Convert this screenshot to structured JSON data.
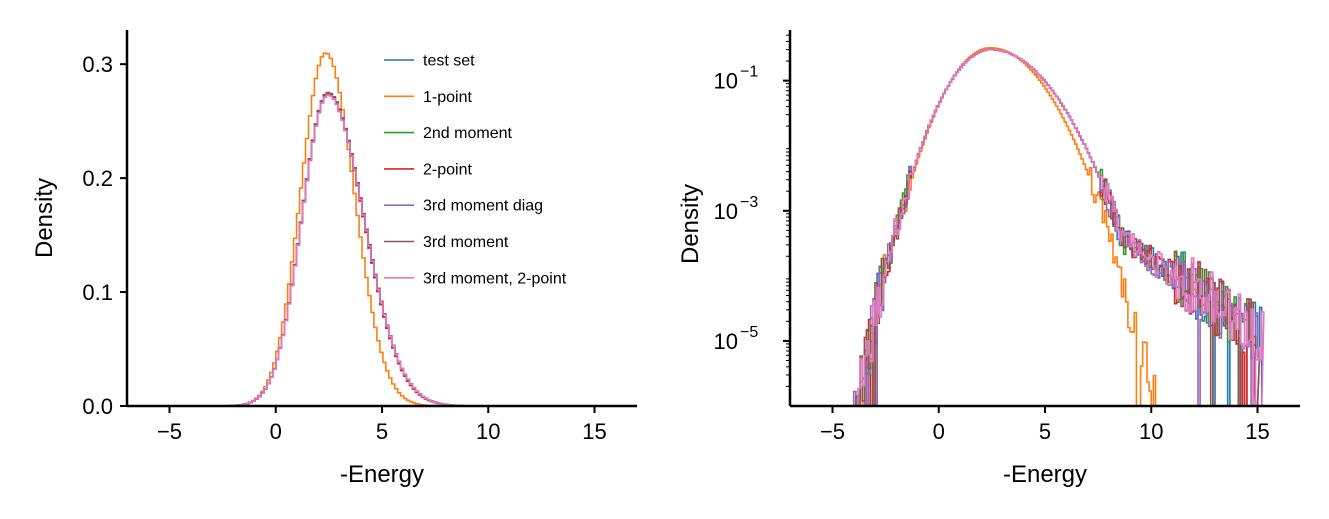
{
  "chart_data": [
    {
      "type": "line",
      "subtype": "step-histogram",
      "xlabel": "-Energy",
      "ylabel": "Density",
      "xlim": [
        -7,
        17
      ],
      "ylim": [
        0,
        0.33
      ],
      "yscale": "linear",
      "xticks": [
        -5,
        0,
        5,
        10,
        15
      ],
      "xtick_labels": [
        "−5",
        "0",
        "5",
        "10",
        "15"
      ],
      "yticks": [
        0.0,
        0.1,
        0.2,
        0.3
      ],
      "ytick_labels": [
        "0.0",
        "0.1",
        "0.2",
        "0.3"
      ],
      "grid": false,
      "legend_position": "upper-right",
      "series": [
        {
          "name": "test set",
          "color": "#1f77b4",
          "mu": 2.45,
          "sigma_left": 1.22,
          "sigma_right": 1.7,
          "peak": 0.275
        },
        {
          "name": "1-point",
          "color": "#ff7f0e",
          "mu": 2.35,
          "sigma_left": 1.18,
          "sigma_right": 1.35,
          "peak": 0.31
        },
        {
          "name": "2nd moment",
          "color": "#2ca02c",
          "mu": 2.45,
          "sigma_left": 1.22,
          "sigma_right": 1.68,
          "peak": 0.274
        },
        {
          "name": "2-point",
          "color": "#d62728",
          "mu": 2.45,
          "sigma_left": 1.22,
          "sigma_right": 1.68,
          "peak": 0.274
        },
        {
          "name": "3rd moment diag",
          "color": "#9467bd",
          "mu": 2.45,
          "sigma_left": 1.22,
          "sigma_right": 1.7,
          "peak": 0.273
        },
        {
          "name": "3rd moment",
          "color": "#8c564b",
          "mu": 2.45,
          "sigma_left": 1.22,
          "sigma_right": 1.7,
          "peak": 0.275
        },
        {
          "name": "3rd moment, 2-point",
          "color": "#e377c2",
          "mu": 2.45,
          "sigma_left": 1.22,
          "sigma_right": 1.7,
          "peak": 0.273
        }
      ]
    },
    {
      "type": "line",
      "subtype": "step-histogram",
      "xlabel": "-Energy",
      "ylabel": "Density",
      "xlim": [
        -7,
        17
      ],
      "ylim": [
        1e-06,
        0.6
      ],
      "yscale": "log",
      "xticks": [
        -5,
        0,
        5,
        10,
        15
      ],
      "xtick_labels": [
        "−5",
        "0",
        "5",
        "10",
        "15"
      ],
      "yticks": [
        1e-05,
        0.001,
        0.1
      ],
      "ytick_labels": [
        {
          "base": "10",
          "exp": "−5"
        },
        {
          "base": "10",
          "exp": "−3"
        },
        {
          "base": "10",
          "exp": "−1"
        }
      ],
      "grid": false,
      "legend_position": "none",
      "series": [
        {
          "name": "test set",
          "color": "#1f77b4",
          "xmin": -5.5,
          "xmax": 15.2,
          "tail": "heavy"
        },
        {
          "name": "1-point",
          "color": "#ff7f0e",
          "xmin": -3.6,
          "xmax": 11.5,
          "tail": "light"
        },
        {
          "name": "2nd moment",
          "color": "#2ca02c",
          "xmin": -5.3,
          "xmax": 14.8,
          "tail": "heavy"
        },
        {
          "name": "2-point",
          "color": "#d62728",
          "xmin": -5.3,
          "xmax": 14.8,
          "tail": "heavy"
        },
        {
          "name": "3rd moment diag",
          "color": "#9467bd",
          "xmin": -5.2,
          "xmax": 15.0,
          "tail": "heavy"
        },
        {
          "name": "3rd moment",
          "color": "#8c564b",
          "xmin": -5.0,
          "xmax": 15.0,
          "tail": "heavy"
        },
        {
          "name": "3rd moment, 2-point",
          "color": "#e377c2",
          "xmin": -5.2,
          "xmax": 15.2,
          "tail": "heavy"
        }
      ]
    }
  ]
}
